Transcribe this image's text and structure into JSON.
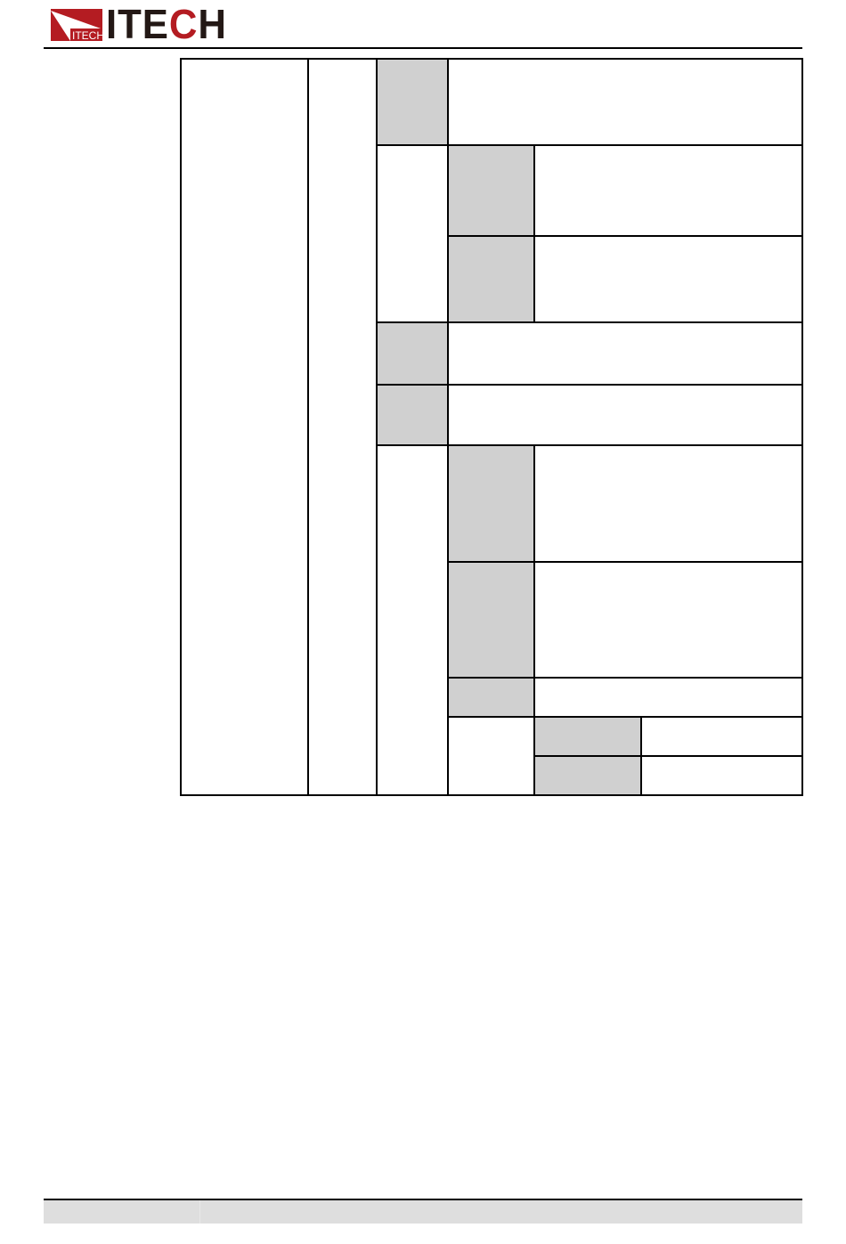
{
  "header": {
    "logo_text": "ITECH",
    "logo_badge_text": "ITECH"
  },
  "colors": {
    "brand_red": "#b41c22",
    "logo_dark": "#231815",
    "shaded_cell": "#d0d0d0",
    "footer_band": "#dedede"
  },
  "table": {
    "cells_text": "empty"
  }
}
